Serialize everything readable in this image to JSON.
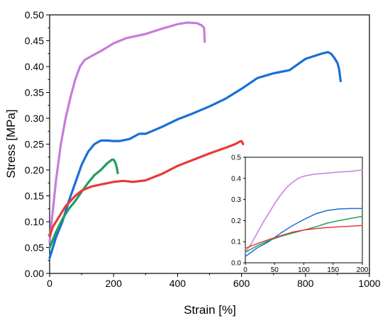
{
  "chart_data": [
    {
      "type": "line",
      "title": "",
      "xlabel": "Strain [%]",
      "ylabel": "Stress [MPa]",
      "xlim": [
        0,
        1000
      ],
      "ylim": [
        0,
        0.5
      ],
      "xticks": [
        "0",
        "200",
        "400",
        "600",
        "800",
        "1000"
      ],
      "yticks": [
        "0.00",
        "0.05",
        "0.10",
        "0.15",
        "0.20",
        "0.25",
        "0.30",
        "0.35",
        "0.40",
        "0.45",
        "0.50"
      ],
      "grid": false,
      "legend": "none",
      "series": [
        {
          "color": "#c77cdc",
          "x": [
            0,
            8,
            20,
            35,
            50,
            65,
            80,
            95,
            110,
            130,
            160,
            200,
            240,
            300,
            350,
            400,
            430,
            460,
            475,
            483,
            485
          ],
          "y": [
            0.06,
            0.11,
            0.18,
            0.25,
            0.3,
            0.34,
            0.375,
            0.4,
            0.413,
            0.42,
            0.43,
            0.445,
            0.455,
            0.463,
            0.473,
            0.482,
            0.485,
            0.484,
            0.48,
            0.475,
            0.448
          ]
        },
        {
          "color": "#1a6fd4",
          "x": [
            0,
            20,
            40,
            60,
            80,
            100,
            120,
            140,
            160,
            180,
            200,
            220,
            250,
            280,
            300,
            320,
            350,
            400,
            450,
            500,
            550,
            600,
            650,
            700,
            750,
            800,
            850,
            870,
            880,
            890,
            900,
            905,
            910
          ],
          "y": [
            0.03,
            0.07,
            0.1,
            0.14,
            0.175,
            0.21,
            0.235,
            0.25,
            0.257,
            0.257,
            0.256,
            0.256,
            0.26,
            0.27,
            0.27,
            0.275,
            0.283,
            0.298,
            0.31,
            0.323,
            0.338,
            0.357,
            0.378,
            0.387,
            0.393,
            0.415,
            0.425,
            0.428,
            0.425,
            0.417,
            0.407,
            0.395,
            0.372
          ]
        },
        {
          "color": "#1f9e5b",
          "x": [
            0,
            20,
            40,
            60,
            80,
            100,
            120,
            140,
            160,
            180,
            195,
            200,
            205,
            210,
            213
          ],
          "y": [
            0.05,
            0.08,
            0.105,
            0.125,
            0.14,
            0.158,
            0.175,
            0.19,
            0.2,
            0.213,
            0.22,
            0.22,
            0.215,
            0.205,
            0.194
          ]
        },
        {
          "color": "#e83a3a",
          "x": [
            0,
            10,
            30,
            50,
            80,
            100,
            130,
            160,
            200,
            230,
            260,
            300,
            350,
            400,
            450,
            500,
            550,
            580,
            595,
            600,
            605
          ],
          "y": [
            0.072,
            0.09,
            0.11,
            0.13,
            0.15,
            0.16,
            0.168,
            0.172,
            0.177,
            0.179,
            0.177,
            0.18,
            0.192,
            0.208,
            0.22,
            0.232,
            0.243,
            0.25,
            0.255,
            0.256,
            0.25
          ]
        }
      ]
    },
    {
      "type": "line",
      "title": "",
      "xlabel": "",
      "ylabel": "",
      "xlim": [
        0,
        200
      ],
      "ylim": [
        0,
        0.5
      ],
      "xticks": [
        "0",
        "50",
        "100",
        "150",
        "200"
      ],
      "yticks": [
        "0.0",
        "0.1",
        "0.2",
        "0.3",
        "0.4",
        "0.5"
      ],
      "grid": false,
      "legend": "none",
      "series": [
        {
          "color": "#c77cdc",
          "x": [
            0,
            10,
            20,
            30,
            40,
            50,
            60,
            70,
            80,
            90,
            100,
            110,
            120,
            140,
            160,
            180,
            200
          ],
          "y": [
            0.05,
            0.09,
            0.14,
            0.19,
            0.235,
            0.28,
            0.32,
            0.355,
            0.38,
            0.4,
            0.41,
            0.416,
            0.42,
            0.425,
            0.43,
            0.433,
            0.44
          ]
        },
        {
          "color": "#1a6fd4",
          "x": [
            0,
            20,
            40,
            60,
            80,
            100,
            120,
            140,
            160,
            180,
            200
          ],
          "y": [
            0.03,
            0.07,
            0.1,
            0.14,
            0.175,
            0.205,
            0.232,
            0.248,
            0.255,
            0.257,
            0.257
          ]
        },
        {
          "color": "#1f9e5b",
          "x": [
            0,
            20,
            40,
            60,
            80,
            100,
            120,
            140,
            160,
            180,
            200
          ],
          "y": [
            0.05,
            0.08,
            0.105,
            0.125,
            0.14,
            0.155,
            0.17,
            0.188,
            0.2,
            0.21,
            0.22
          ]
        },
        {
          "color": "#e83a3a",
          "x": [
            0,
            10,
            20,
            40,
            60,
            80,
            100,
            120,
            140,
            160,
            180,
            200
          ],
          "y": [
            0.068,
            0.08,
            0.09,
            0.11,
            0.128,
            0.145,
            0.155,
            0.162,
            0.167,
            0.17,
            0.173,
            0.177
          ]
        }
      ]
    }
  ]
}
